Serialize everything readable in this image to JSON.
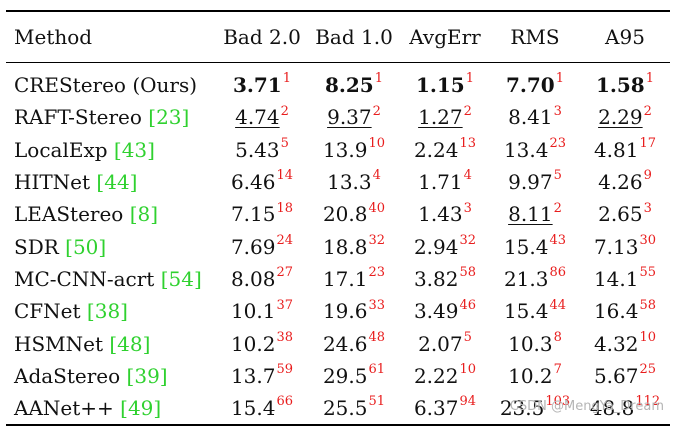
{
  "table": {
    "columns": [
      "Method",
      "Bad 2.0",
      "Bad 1.0",
      "AvgErr",
      "RMS",
      "A95"
    ],
    "rows": [
      {
        "method": "CREStereo (Ours)",
        "ref": "",
        "cells": [
          {
            "v": "3.71",
            "r": "1",
            "b": true,
            "u": false
          },
          {
            "v": "8.25",
            "r": "1",
            "b": true,
            "u": false
          },
          {
            "v": "1.15",
            "r": "1",
            "b": true,
            "u": false
          },
          {
            "v": "7.70",
            "r": "1",
            "b": true,
            "u": false
          },
          {
            "v": "1.58",
            "r": "1",
            "b": true,
            "u": false
          }
        ]
      },
      {
        "method": "RAFT-Stereo",
        "ref": "[23]",
        "cells": [
          {
            "v": "4.74",
            "r": "2",
            "b": false,
            "u": true
          },
          {
            "v": "9.37",
            "r": "2",
            "b": false,
            "u": true
          },
          {
            "v": "1.27",
            "r": "2",
            "b": false,
            "u": true
          },
          {
            "v": "8.41",
            "r": "3",
            "b": false,
            "u": false
          },
          {
            "v": "2.29",
            "r": "2",
            "b": false,
            "u": true
          }
        ]
      },
      {
        "method": "LocalExp",
        "ref": "[43]",
        "cells": [
          {
            "v": "5.43",
            "r": "5",
            "b": false,
            "u": false
          },
          {
            "v": "13.9",
            "r": "10",
            "b": false,
            "u": false
          },
          {
            "v": "2.24",
            "r": "13",
            "b": false,
            "u": false
          },
          {
            "v": "13.4",
            "r": "23",
            "b": false,
            "u": false
          },
          {
            "v": "4.81",
            "r": "17",
            "b": false,
            "u": false
          }
        ]
      },
      {
        "method": "HITNet",
        "ref": "[44]",
        "cells": [
          {
            "v": "6.46",
            "r": "14",
            "b": false,
            "u": false
          },
          {
            "v": "13.3",
            "r": "4",
            "b": false,
            "u": false
          },
          {
            "v": "1.71",
            "r": "4",
            "b": false,
            "u": false
          },
          {
            "v": "9.97",
            "r": "5",
            "b": false,
            "u": false
          },
          {
            "v": "4.26",
            "r": "9",
            "b": false,
            "u": false
          }
        ]
      },
      {
        "method": "LEAStereo",
        "ref": "[8]",
        "cells": [
          {
            "v": "7.15",
            "r": "18",
            "b": false,
            "u": false
          },
          {
            "v": "20.8",
            "r": "40",
            "b": false,
            "u": false
          },
          {
            "v": "1.43",
            "r": "3",
            "b": false,
            "u": false
          },
          {
            "v": "8.11",
            "r": "2",
            "b": false,
            "u": true
          },
          {
            "v": "2.65",
            "r": "3",
            "b": false,
            "u": false
          }
        ]
      },
      {
        "method": "SDR",
        "ref": "[50]",
        "cells": [
          {
            "v": "7.69",
            "r": "24",
            "b": false,
            "u": false
          },
          {
            "v": "18.8",
            "r": "32",
            "b": false,
            "u": false
          },
          {
            "v": "2.94",
            "r": "32",
            "b": false,
            "u": false
          },
          {
            "v": "15.4",
            "r": "43",
            "b": false,
            "u": false
          },
          {
            "v": "7.13",
            "r": "30",
            "b": false,
            "u": false
          }
        ]
      },
      {
        "method": "MC-CNN-acrt",
        "ref": "[54]",
        "cells": [
          {
            "v": "8.08",
            "r": "27",
            "b": false,
            "u": false
          },
          {
            "v": "17.1",
            "r": "23",
            "b": false,
            "u": false
          },
          {
            "v": "3.82",
            "r": "58",
            "b": false,
            "u": false
          },
          {
            "v": "21.3",
            "r": "86",
            "b": false,
            "u": false
          },
          {
            "v": "14.1",
            "r": "55",
            "b": false,
            "u": false
          }
        ]
      },
      {
        "method": "CFNet",
        "ref": "[38]",
        "cells": [
          {
            "v": "10.1",
            "r": "37",
            "b": false,
            "u": false
          },
          {
            "v": "19.6",
            "r": "33",
            "b": false,
            "u": false
          },
          {
            "v": "3.49",
            "r": "46",
            "b": false,
            "u": false
          },
          {
            "v": "15.4",
            "r": "44",
            "b": false,
            "u": false
          },
          {
            "v": "16.4",
            "r": "58",
            "b": false,
            "u": false
          }
        ]
      },
      {
        "method": "HSMNet",
        "ref": "[48]",
        "cells": [
          {
            "v": "10.2",
            "r": "38",
            "b": false,
            "u": false
          },
          {
            "v": "24.6",
            "r": "48",
            "b": false,
            "u": false
          },
          {
            "v": "2.07",
            "r": "5",
            "b": false,
            "u": false
          },
          {
            "v": "10.3",
            "r": "8",
            "b": false,
            "u": false
          },
          {
            "v": "4.32",
            "r": "10",
            "b": false,
            "u": false
          }
        ]
      },
      {
        "method": "AdaStereo",
        "ref": "[39]",
        "cells": [
          {
            "v": "13.7",
            "r": "59",
            "b": false,
            "u": false
          },
          {
            "v": "29.5",
            "r": "61",
            "b": false,
            "u": false
          },
          {
            "v": "2.22",
            "r": "10",
            "b": false,
            "u": false
          },
          {
            "v": "10.2",
            "r": "7",
            "b": false,
            "u": false
          },
          {
            "v": "5.67",
            "r": "25",
            "b": false,
            "u": false
          }
        ]
      },
      {
        "method": "AANet++",
        "ref": "[49]",
        "cells": [
          {
            "v": "15.4",
            "r": "66",
            "b": false,
            "u": false
          },
          {
            "v": "25.5",
            "r": "51",
            "b": false,
            "u": false
          },
          {
            "v": "6.37",
            "r": "94",
            "b": false,
            "u": false
          },
          {
            "v": "23.5",
            "r": "103",
            "b": false,
            "u": false
          },
          {
            "v": "48.8",
            "r": "112",
            "b": false,
            "u": false
          }
        ]
      }
    ]
  },
  "watermark": "CSDN @MengYa_Dream",
  "colors": {
    "ref_link": "#2fd12f",
    "rank_sup": "#e81d1d"
  }
}
